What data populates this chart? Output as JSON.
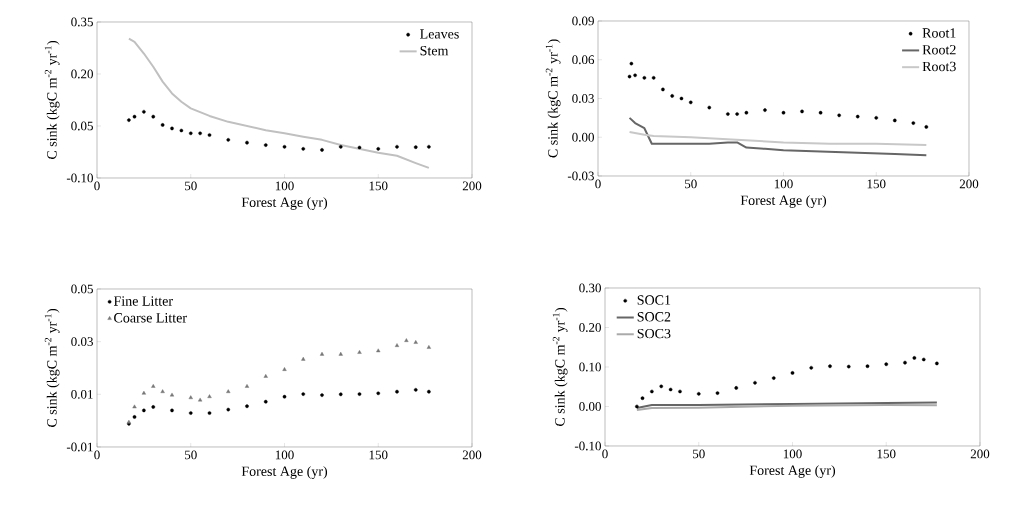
{
  "chart_data": [
    {
      "type": "scatter",
      "xlabel": "Forest Age (yr)",
      "ylabel": "C sink (kgC m$^{-2}$ yr$^{-1}$)",
      "xlim": [
        0,
        200
      ],
      "xticks": [
        0,
        50,
        100,
        150,
        200
      ],
      "ylim": [
        -0.1,
        0.35
      ],
      "yticks": [
        {
          "value": -0.1,
          "label": "-0.10"
        },
        {
          "value": 0.05,
          "label": "0.05"
        },
        {
          "value": 0.2,
          "label": "0.20"
        },
        {
          "value": 0.35,
          "label": "0.35"
        }
      ],
      "legend": "top right",
      "series": [
        {
          "name": "Leaves",
          "marker": "circle",
          "color": "#000000",
          "x": [
            17,
            20,
            25,
            30,
            35,
            40,
            45,
            50,
            55,
            60,
            70,
            80,
            90,
            100,
            110,
            120,
            130,
            140,
            150,
            160,
            170,
            177
          ],
          "values": [
            0.067,
            0.077,
            0.091,
            0.077,
            0.053,
            0.043,
            0.037,
            0.029,
            0.029,
            0.024,
            0.01,
            0.002,
            -0.005,
            -0.01,
            -0.016,
            -0.019,
            -0.01,
            -0.012,
            -0.016,
            -0.01,
            -0.011,
            -0.01
          ]
        },
        {
          "name": "Stem",
          "type": "line",
          "color": "#c0c0c0",
          "x": [
            17,
            20,
            25,
            30,
            35,
            40,
            45,
            50,
            60,
            70,
            80,
            90,
            100,
            110,
            120,
            130,
            140,
            150,
            160,
            170,
            177
          ],
          "values": [
            0.302,
            0.293,
            0.259,
            0.221,
            0.178,
            0.144,
            0.12,
            0.101,
            0.079,
            0.062,
            0.05,
            0.038,
            0.029,
            0.019,
            0.01,
            -0.005,
            -0.016,
            -0.027,
            -0.036,
            -0.057,
            -0.071
          ]
        }
      ]
    },
    {
      "type": "scatter",
      "xlabel": "Forest Age (yr)",
      "ylabel": "C sink (kgC m$^{-2}$ yr$^{-1}$)",
      "xlim": [
        0,
        200
      ],
      "xticks": [
        0,
        50,
        100,
        150,
        200
      ],
      "ylim": [
        -0.03,
        0.09
      ],
      "yticks": [
        {
          "value": -0.03,
          "label": "-0.03"
        },
        {
          "value": 0,
          "label": "0.00"
        },
        {
          "value": 0.03,
          "label": "0.03"
        },
        {
          "value": 0.06,
          "label": "0.06"
        },
        {
          "value": 0.09,
          "label": "0.09"
        }
      ],
      "legend": "top right",
      "series": [
        {
          "name": "Root1",
          "marker": "circle",
          "color": "#000000",
          "x": [
            17,
            18,
            20,
            25,
            30,
            35,
            40,
            45,
            50,
            60,
            70,
            75,
            80,
            90,
            100,
            110,
            120,
            130,
            140,
            150,
            160,
            170,
            177
          ],
          "values": [
            0.047,
            0.057,
            0.048,
            0.046,
            0.046,
            0.037,
            0.032,
            0.03,
            0.027,
            0.023,
            0.018,
            0.018,
            0.019,
            0.021,
            0.019,
            0.02,
            0.019,
            0.017,
            0.016,
            0.015,
            0.013,
            0.011,
            0.008
          ]
        },
        {
          "name": "Root2",
          "type": "line",
          "color": "#666666",
          "x": [
            17,
            20,
            25,
            29,
            40,
            50,
            60,
            70,
            75,
            80,
            90,
            100,
            120,
            140,
            160,
            177
          ],
          "values": [
            0.015,
            0.011,
            0.007,
            -0.005,
            -0.005,
            -0.005,
            -0.005,
            -0.004,
            -0.004,
            -0.008,
            -0.009,
            -0.01,
            -0.011,
            -0.012,
            -0.013,
            -0.014
          ]
        },
        {
          "name": "Root3",
          "type": "line",
          "color": "#c8c8c8",
          "x": [
            17,
            25,
            30,
            50,
            75,
            100,
            125,
            150,
            177
          ],
          "values": [
            0.004,
            0.002,
            0.001,
            0.0,
            -0.002,
            -0.004,
            -0.005,
            -0.005,
            -0.006
          ]
        }
      ]
    },
    {
      "type": "scatter",
      "xlabel": "Forest Age (yr)",
      "ylabel": "C sink (kgC m$^{-2}$ yr$^{-1}$)",
      "xlim": [
        0,
        200
      ],
      "xticks": [
        0,
        50,
        100,
        150,
        200
      ],
      "ylim": [
        -0.01,
        0.05
      ],
      "yticks": [
        {
          "value": -0.01,
          "label": "-0.01"
        },
        {
          "value": 0.01,
          "label": "0.01"
        },
        {
          "value": 0.03,
          "label": "0.03"
        },
        {
          "value": 0.05,
          "label": "0.05"
        }
      ],
      "legend": "top left",
      "series": [
        {
          "name": "Fine Litter",
          "marker": "circle",
          "color": "#000000",
          "x": [
            17,
            20,
            25,
            30,
            40,
            50,
            60,
            70,
            80,
            90,
            100,
            110,
            120,
            130,
            140,
            150,
            160,
            170,
            177
          ],
          "values": [
            -0.0012,
            0.0014,
            0.0039,
            0.0052,
            0.0039,
            0.0029,
            0.0029,
            0.0042,
            0.0055,
            0.0072,
            0.0091,
            0.0101,
            0.0097,
            0.01,
            0.0101,
            0.0104,
            0.011,
            0.0117,
            0.011
          ]
        },
        {
          "name": "Coarse Litter",
          "marker": "triangle",
          "color": "#777777",
          "x": [
            17,
            20,
            25,
            30,
            35,
            40,
            50,
            55,
            60,
            70,
            80,
            90,
            100,
            110,
            120,
            130,
            140,
            150,
            160,
            165,
            170,
            177
          ],
          "values": [
            -0.0006,
            0.0052,
            0.0104,
            0.013,
            0.011,
            0.0097,
            0.0087,
            0.0078,
            0.0091,
            0.011,
            0.013,
            0.0168,
            0.0194,
            0.0233,
            0.0252,
            0.0252,
            0.0259,
            0.0265,
            0.0285,
            0.0304,
            0.0297,
            0.0278
          ]
        }
      ]
    },
    {
      "type": "scatter",
      "xlabel": "Forest Age (yr)",
      "ylabel": "C sink (kgC m$^{-2}$ yr$^{-1}$)",
      "xlim": [
        0,
        200
      ],
      "xticks": [
        0,
        50,
        100,
        150,
        200
      ],
      "ylim": [
        -0.1,
        0.3
      ],
      "yticks": [
        {
          "value": -0.1,
          "label": "-0.10"
        },
        {
          "value": 0,
          "label": "0.00"
        },
        {
          "value": 0.1,
          "label": "0.10"
        },
        {
          "value": 0.2,
          "label": "0.20"
        },
        {
          "value": 0.3,
          "label": "0.30"
        }
      ],
      "legend": "top left",
      "series": [
        {
          "name": "SOC1",
          "marker": "circle",
          "color": "#000000",
          "x": [
            17,
            20,
            25,
            30,
            35,
            40,
            50,
            60,
            70,
            80,
            90,
            100,
            110,
            120,
            130,
            140,
            150,
            160,
            165,
            170,
            177
          ],
          "values": [
            0.0,
            0.021,
            0.038,
            0.051,
            0.043,
            0.038,
            0.032,
            0.034,
            0.047,
            0.06,
            0.072,
            0.085,
            0.098,
            0.102,
            0.101,
            0.102,
            0.107,
            0.111,
            0.123,
            0.119,
            0.109
          ]
        },
        {
          "name": "SOC2",
          "type": "line",
          "color": "#666666",
          "x": [
            17,
            25,
            50,
            100,
            150,
            177
          ],
          "values": [
            -0.004,
            0.004,
            0.004,
            0.006,
            0.009,
            0.01
          ]
        },
        {
          "name": "SOC3",
          "type": "line",
          "color": "#aaaaaa",
          "x": [
            17,
            25,
            50,
            100,
            150,
            177
          ],
          "values": [
            -0.009,
            -0.004,
            -0.003,
            0.002,
            0.004,
            0.003
          ]
        }
      ]
    }
  ]
}
